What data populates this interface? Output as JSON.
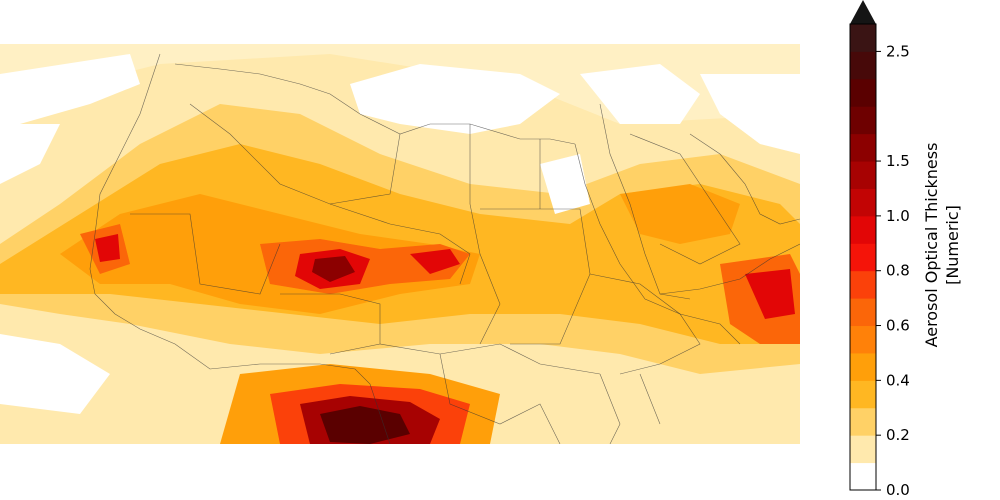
{
  "colorbar": {
    "label_line1": "Aerosol Optical Thickness",
    "label_line2": "[Numeric]",
    "extend": "max",
    "bounds": [
      0.0,
      0.1,
      0.2,
      0.3,
      0.4,
      0.5,
      0.6,
      0.7,
      0.8,
      0.9,
      1.0,
      1.25,
      1.5,
      1.75,
      2.0,
      2.25,
      2.5,
      2.75
    ],
    "colors": [
      "#ffffff",
      "#ffe9ad",
      "#ffd166",
      "#ffb722",
      "#ff9f0a",
      "#ff8109",
      "#fb6609",
      "#fb410a",
      "#f51409",
      "#e20606",
      "#c20404",
      "#a70202",
      "#8c0000",
      "#6e0000",
      "#5a0000",
      "#470909",
      "#3a1414"
    ],
    "extend_color": "#151515",
    "ticks": [
      {
        "value": 0.0,
        "label": "0.0"
      },
      {
        "value": 0.2,
        "label": "0.2"
      },
      {
        "value": 0.4,
        "label": "0.4"
      },
      {
        "value": 0.6,
        "label": "0.6"
      },
      {
        "value": 0.8,
        "label": "0.8"
      },
      {
        "value": 1.0,
        "label": "1.0"
      },
      {
        "value": 1.5,
        "label": "1.5"
      },
      {
        "value": 2.5,
        "label": "2.5"
      }
    ]
  },
  "map": {
    "region": "North Africa and Arabian Peninsula",
    "background": "#ffffff",
    "border_color": "#333333"
  }
}
